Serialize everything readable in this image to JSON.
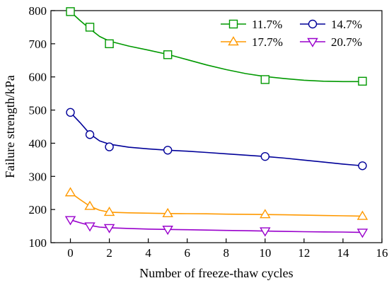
{
  "chart_data": {
    "type": "line",
    "xlabel": "Number of freeze-thaw cycles",
    "ylabel": "Failure strength/kPa",
    "xlim": [
      -1,
      16
    ],
    "ylim": [
      100,
      800
    ],
    "xticks": [
      0,
      2,
      4,
      6,
      8,
      10,
      12,
      14,
      16
    ],
    "yticks": [
      100,
      200,
      300,
      400,
      500,
      600,
      700,
      800
    ],
    "grid": false,
    "legend_position": "top-right",
    "series": [
      {
        "name": "11.7%",
        "color": "#009900",
        "marker": "square",
        "points": [
          [
            0,
            797
          ],
          [
            1,
            750
          ],
          [
            2,
            700
          ],
          [
            5,
            667
          ],
          [
            10,
            592
          ],
          [
            15,
            587
          ]
        ],
        "curve": [
          [
            0,
            797
          ],
          [
            0.5,
            770
          ],
          [
            1,
            745
          ],
          [
            1.5,
            722
          ],
          [
            2,
            708
          ],
          [
            3,
            693
          ],
          [
            4,
            681
          ],
          [
            5,
            668
          ],
          [
            6,
            652
          ],
          [
            7,
            636
          ],
          [
            8,
            622
          ],
          [
            9,
            610
          ],
          [
            10,
            601
          ],
          [
            11,
            595
          ],
          [
            12,
            590
          ],
          [
            13,
            587
          ],
          [
            14,
            586
          ],
          [
            15,
            586
          ]
        ]
      },
      {
        "name": "14.7%",
        "color": "#000099",
        "marker": "circle",
        "points": [
          [
            0,
            493
          ],
          [
            1,
            426
          ],
          [
            2,
            389
          ],
          [
            5,
            379
          ],
          [
            10,
            360
          ],
          [
            15,
            332
          ]
        ],
        "curve": [
          [
            0,
            493
          ],
          [
            0.5,
            462
          ],
          [
            1,
            428
          ],
          [
            1.5,
            407
          ],
          [
            2,
            397
          ],
          [
            3,
            388
          ],
          [
            4,
            383
          ],
          [
            5,
            379
          ],
          [
            6,
            376
          ],
          [
            7,
            372
          ],
          [
            8,
            368
          ],
          [
            9,
            364
          ],
          [
            10,
            360
          ],
          [
            11,
            355
          ],
          [
            12,
            349
          ],
          [
            13,
            343
          ],
          [
            14,
            337
          ],
          [
            15,
            332
          ]
        ]
      },
      {
        "name": "17.7%",
        "color": "#ff9900",
        "marker": "triangle-up",
        "points": [
          [
            0,
            251
          ],
          [
            1,
            210
          ],
          [
            2,
            192
          ],
          [
            5,
            188
          ],
          [
            10,
            185
          ],
          [
            15,
            180
          ]
        ],
        "curve": [
          [
            0,
            251
          ],
          [
            0.5,
            230
          ],
          [
            1,
            210
          ],
          [
            1.5,
            198
          ],
          [
            2,
            192
          ],
          [
            3,
            190
          ],
          [
            4,
            189
          ],
          [
            5,
            188
          ],
          [
            6,
            187.5
          ],
          [
            7,
            187
          ],
          [
            8,
            186
          ],
          [
            9,
            185.5
          ],
          [
            10,
            185
          ],
          [
            11,
            184
          ],
          [
            12,
            183
          ],
          [
            13,
            182
          ],
          [
            14,
            181
          ],
          [
            15,
            180
          ]
        ]
      },
      {
        "name": "20.7%",
        "color": "#9900cc",
        "marker": "triangle-down",
        "points": [
          [
            0,
            169
          ],
          [
            1,
            150
          ],
          [
            2,
            145
          ],
          [
            5,
            140
          ],
          [
            10,
            135
          ],
          [
            15,
            131
          ]
        ],
        "curve": [
          [
            0,
            169
          ],
          [
            0.5,
            160
          ],
          [
            1,
            152
          ],
          [
            1.5,
            147
          ],
          [
            2,
            145
          ],
          [
            3,
            143
          ],
          [
            4,
            141
          ],
          [
            5,
            140
          ],
          [
            6,
            139
          ],
          [
            7,
            138
          ],
          [
            8,
            137
          ],
          [
            9,
            136
          ],
          [
            10,
            135
          ],
          [
            11,
            134
          ],
          [
            12,
            133
          ],
          [
            13,
            132.5
          ],
          [
            14,
            132
          ],
          [
            15,
            131
          ]
        ]
      }
    ]
  }
}
